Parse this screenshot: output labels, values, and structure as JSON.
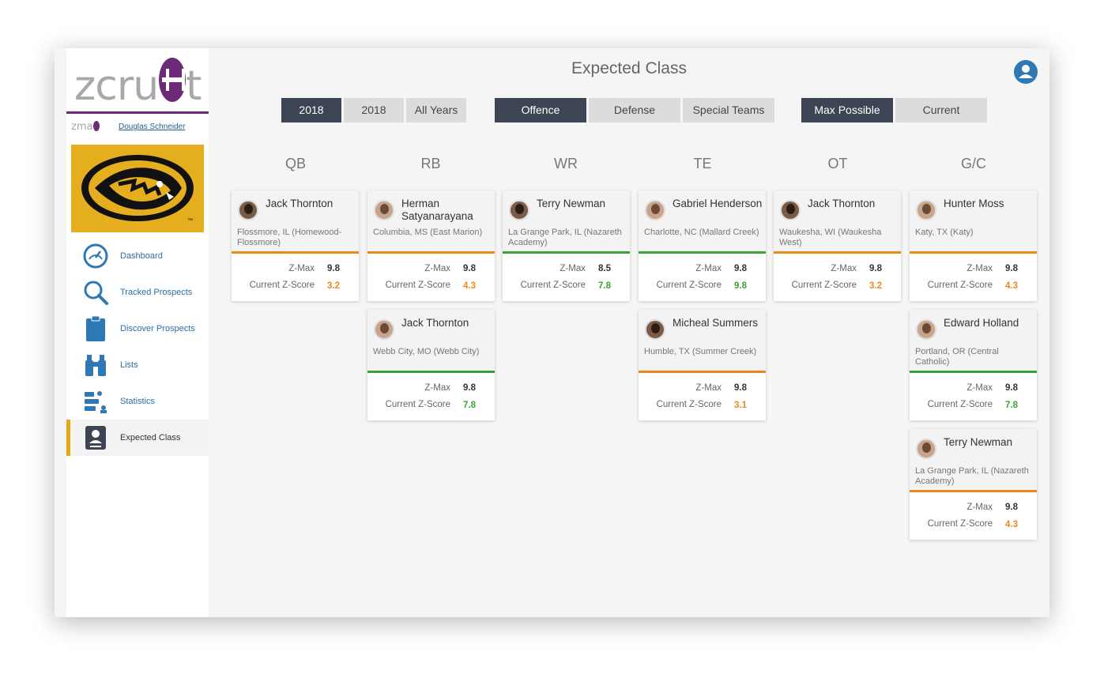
{
  "brand": {
    "logo_text": "zcru",
    "logo_t": "t",
    "small_logo_text": "zma",
    "accent": "#6c2a78"
  },
  "user": {
    "name": "Douglas Schneider"
  },
  "sidebar": {
    "items": [
      {
        "label": "Dashboard",
        "icon": "speedometer-icon"
      },
      {
        "label": "Tracked Prospects",
        "icon": "search-icon"
      },
      {
        "label": "Discover Prospects",
        "icon": "clipboard-icon"
      },
      {
        "label": "Lists",
        "icon": "binoculars-icon"
      },
      {
        "label": "Statistics",
        "icon": "stats-icon"
      },
      {
        "label": "Expected Class",
        "icon": "id-badge-icon",
        "active": true
      }
    ]
  },
  "header": {
    "title": "Expected Class"
  },
  "filters": {
    "years": [
      "2018",
      "2018",
      "All Years"
    ],
    "units": [
      "Offence",
      "Defense",
      "Special Teams"
    ],
    "modes": [
      "Max Possible",
      "Current"
    ]
  },
  "labels": {
    "zmax": "Z-Max",
    "current": "Current Z-Score"
  },
  "columns": [
    {
      "pos": "QB",
      "players": [
        {
          "name": "Jack Thornton",
          "loc": "Flossmore, IL (Homewood-Flossmore)",
          "zmax": "9.8",
          "cur": "3.2",
          "status": "orange",
          "skin": "dark"
        }
      ]
    },
    {
      "pos": "RB",
      "players": [
        {
          "name": "Herman Satyanarayana",
          "loc": "Columbia, MS (East Marion)",
          "zmax": "9.8",
          "cur": "4.3",
          "status": "orange",
          "skin": "light"
        },
        {
          "name": "Jack Thornton",
          "loc": "Webb City, MO (Webb City)",
          "zmax": "9.8",
          "cur": "7.8",
          "status": "green",
          "skin": "light"
        }
      ]
    },
    {
      "pos": "WR",
      "players": [
        {
          "name": "Terry Newman",
          "loc": "La Grange Park, IL (Nazareth Academy)",
          "zmax": "8.5",
          "cur": "7.8",
          "status": "green",
          "skin": "dark"
        }
      ]
    },
    {
      "pos": "TE",
      "players": [
        {
          "name": "Gabriel Henderson",
          "loc": "Charlotte, NC (Mallard Creek)",
          "zmax": "9.8",
          "cur": "9.8",
          "status": "green",
          "skin": "light"
        },
        {
          "name": "Micheal Summers",
          "loc": "Humble, TX (Summer Creek)",
          "zmax": "9.8",
          "cur": "3.1",
          "status": "orange",
          "skin": "dark"
        }
      ]
    },
    {
      "pos": "OT",
      "players": [
        {
          "name": "Jack Thornton",
          "loc": "Waukesha, WI (Waukesha West)",
          "zmax": "9.8",
          "cur": "3.2",
          "status": "orange",
          "skin": "dark"
        }
      ]
    },
    {
      "pos": "G/C",
      "players": [
        {
          "name": "Hunter Moss",
          "loc": "Katy, TX (Katy)",
          "zmax": "9.8",
          "cur": "4.3",
          "status": "orange",
          "skin": "light"
        },
        {
          "name": "Edward Holland",
          "loc": "Portland, OR (Central Catholic)",
          "zmax": "9.8",
          "cur": "7.8",
          "status": "green",
          "skin": "light"
        },
        {
          "name": "Terry Newman",
          "loc": "La Grange Park, IL (Nazareth Academy)",
          "zmax": "9.8",
          "cur": "4.3",
          "status": "orange",
          "skin": "light"
        }
      ]
    }
  ]
}
